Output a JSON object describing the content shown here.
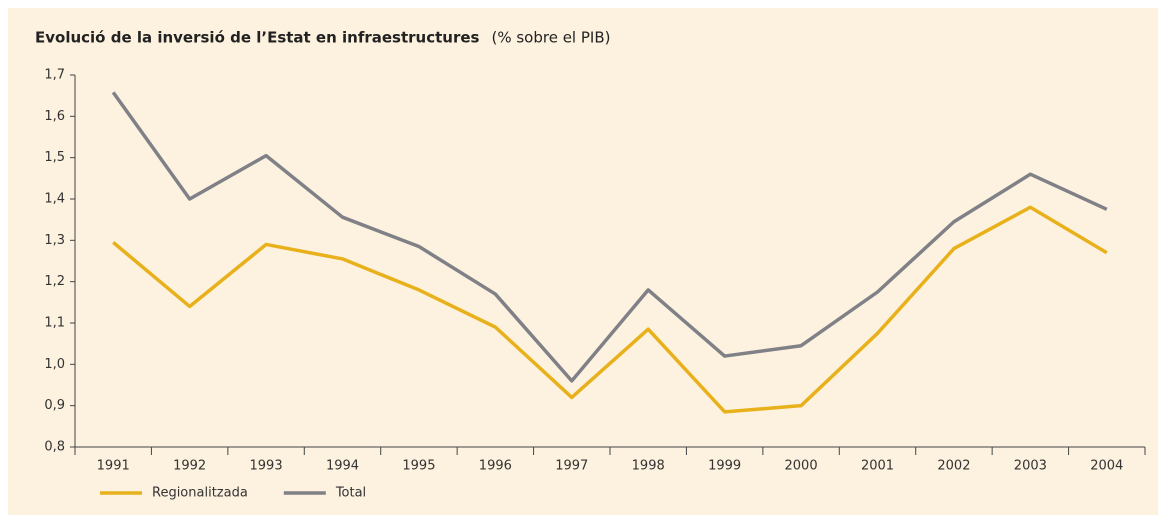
{
  "chart_data": {
    "type": "line",
    "title": "Evolució de la inversió de l’Estat en infraestructures",
    "subtitle": "(% sobre el PIB)",
    "categories": [
      "1991",
      "1992",
      "1993",
      "1994",
      "1995",
      "1996",
      "1997",
      "1998",
      "1999",
      "2000",
      "2001",
      "2002",
      "2003",
      "2004"
    ],
    "series": [
      {
        "name": "Regionalitzada",
        "color": "#e8b11c",
        "values": [
          1.295,
          1.14,
          1.29,
          1.255,
          1.18,
          1.09,
          0.92,
          1.085,
          0.885,
          0.9,
          1.075,
          1.28,
          1.38,
          1.27
        ]
      },
      {
        "name": "Total",
        "color": "#808087",
        "values": [
          1.658,
          1.4,
          1.505,
          1.356,
          1.285,
          1.17,
          0.96,
          1.18,
          1.02,
          1.045,
          1.175,
          1.345,
          1.46,
          1.375
        ]
      }
    ],
    "ylim": [
      0.8,
      1.7
    ],
    "yticks": [
      {
        "value": 0.8,
        "label": "0,8"
      },
      {
        "value": 0.9,
        "label": "0,9"
      },
      {
        "value": 1.0,
        "label": "1,0"
      },
      {
        "value": 1.1,
        "label": "1,1"
      },
      {
        "value": 1.2,
        "label": "1,2"
      },
      {
        "value": 1.3,
        "label": "1,3"
      },
      {
        "value": 1.4,
        "label": "1,4"
      },
      {
        "value": 1.5,
        "label": "1,5"
      },
      {
        "value": 1.6,
        "label": "1,6"
      },
      {
        "value": 1.7,
        "label": "1,7"
      }
    ],
    "grid": false,
    "legend": "bottom-left"
  }
}
